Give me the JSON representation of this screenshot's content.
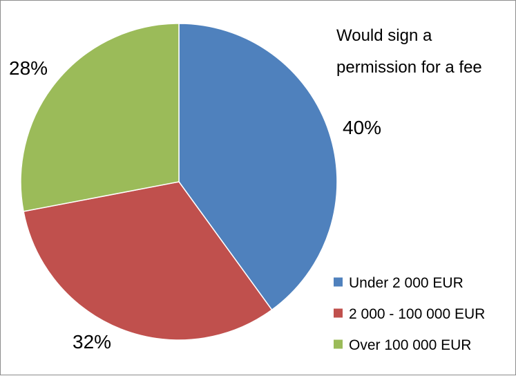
{
  "chart_data": {
    "type": "pie",
    "title_lines": [
      "Would sign a",
      "permission for a fee"
    ],
    "categories": [
      "Under 2 000 EUR",
      "2 000 - 100 000 EUR",
      "Over 100 000 EUR"
    ],
    "values": [
      40,
      32,
      28
    ],
    "labels": [
      "40%",
      "32%",
      "28%"
    ],
    "colors": [
      "#4f81bd",
      "#c0504d",
      "#9bbb59"
    ],
    "legend_position": "bottom-right",
    "start_angle": "12 o'clock",
    "direction": "clockwise"
  }
}
